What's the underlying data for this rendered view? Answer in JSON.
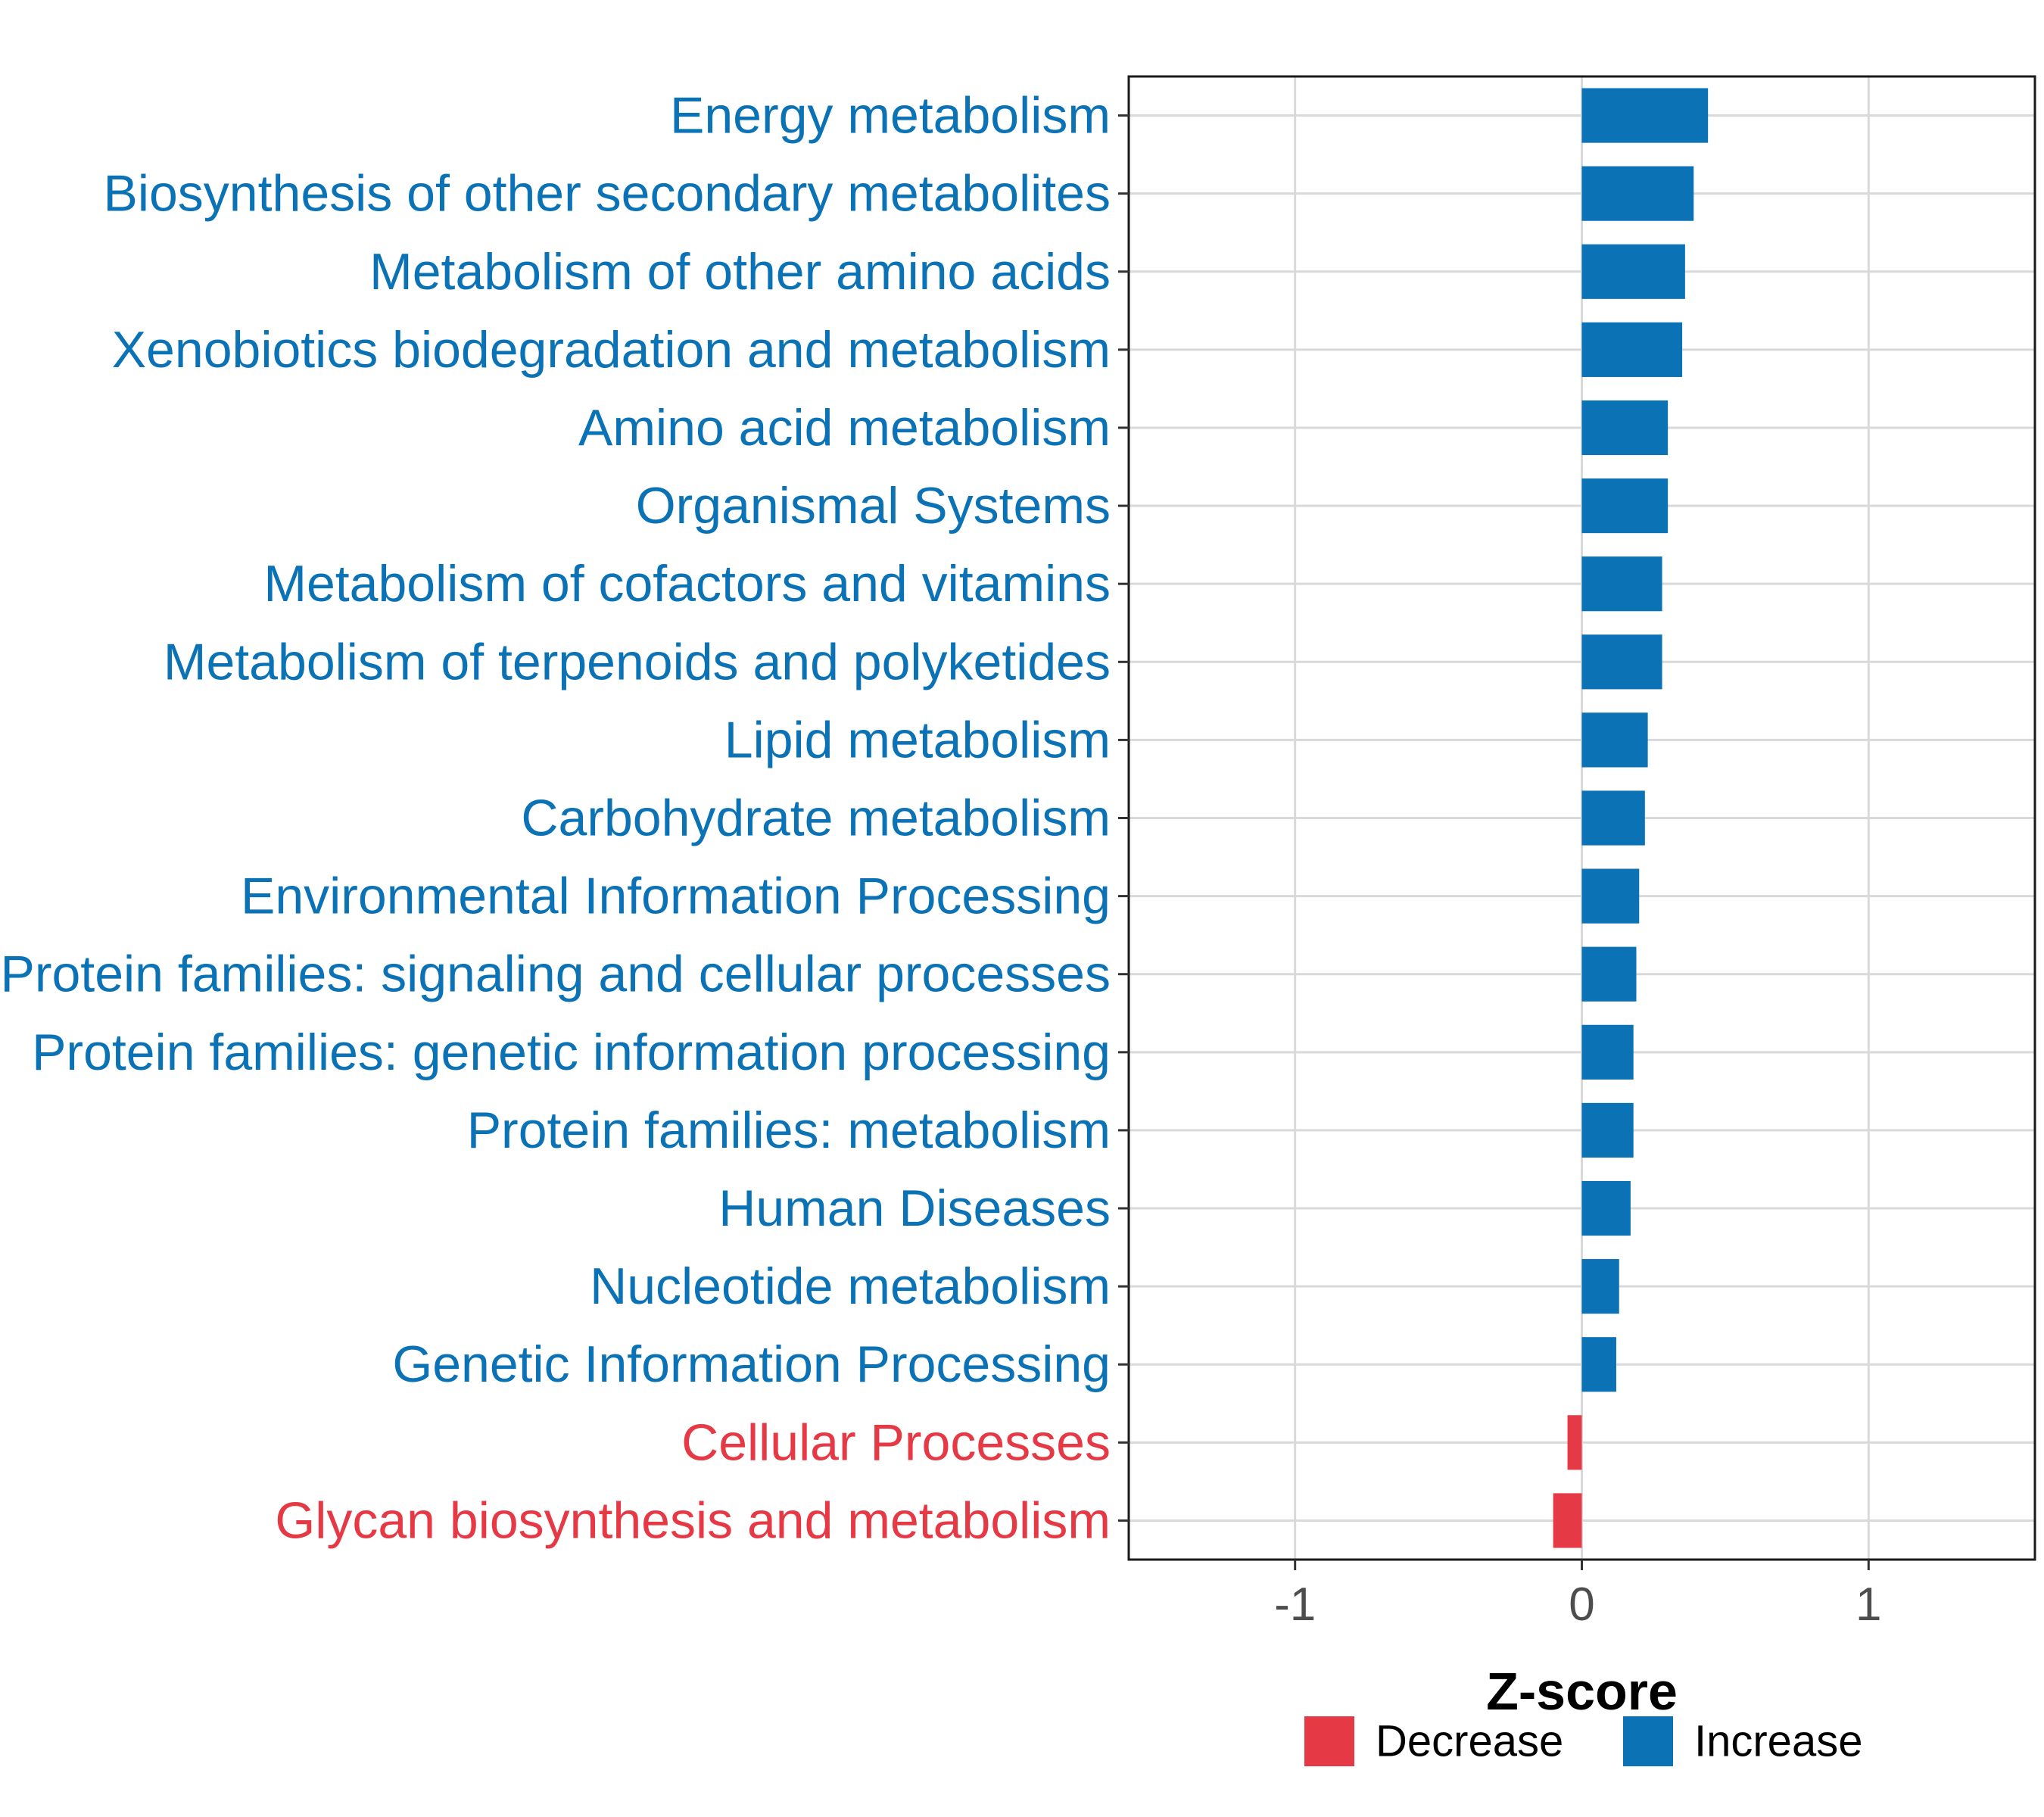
{
  "chart_data": {
    "type": "bar",
    "orientation": "horizontal",
    "categories": [
      "Energy metabolism",
      "Biosynthesis of other secondary metabolites",
      "Metabolism of other amino acids",
      "Xenobiotics biodegradation and metabolism",
      "Amino acid metabolism",
      "Organismal Systems",
      "Metabolism of cofactors and vitamins",
      "Metabolism of terpenoids and polyketides",
      "Lipid metabolism",
      "Carbohydrate metabolism",
      "Environmental Information Processing",
      "Protein families: signaling and cellular processes",
      "Protein families: genetic information processing",
      "Protein families: metabolism",
      "Human Diseases",
      "Nucleotide metabolism",
      "Genetic Information Processing",
      "Cellular Processes",
      "Glycan biosynthesis and metabolism"
    ],
    "values": [
      0.44,
      0.39,
      0.36,
      0.35,
      0.3,
      0.3,
      0.28,
      0.28,
      0.23,
      0.22,
      0.2,
      0.19,
      0.18,
      0.18,
      0.17,
      0.13,
      0.12,
      -0.05,
      -0.1
    ],
    "groups": [
      "Increase",
      "Increase",
      "Increase",
      "Increase",
      "Increase",
      "Increase",
      "Increase",
      "Increase",
      "Increase",
      "Increase",
      "Increase",
      "Increase",
      "Increase",
      "Increase",
      "Increase",
      "Increase",
      "Increase",
      "Decrease",
      "Decrease"
    ],
    "xlabel": "Z-score",
    "xlim": [
      -1.58,
      1.58
    ],
    "xticks": [
      -1,
      0,
      1
    ],
    "xtick_labels": [
      "-1",
      "0",
      "1"
    ],
    "grid": true,
    "legend": {
      "position": "bottom",
      "entries": [
        {
          "label": "Decrease",
          "color": "#e63946"
        },
        {
          "label": "Increase",
          "color": "#0a72b5"
        }
      ]
    },
    "colors": {
      "Increase": "#0a72b5",
      "Decrease": "#e63946"
    }
  }
}
